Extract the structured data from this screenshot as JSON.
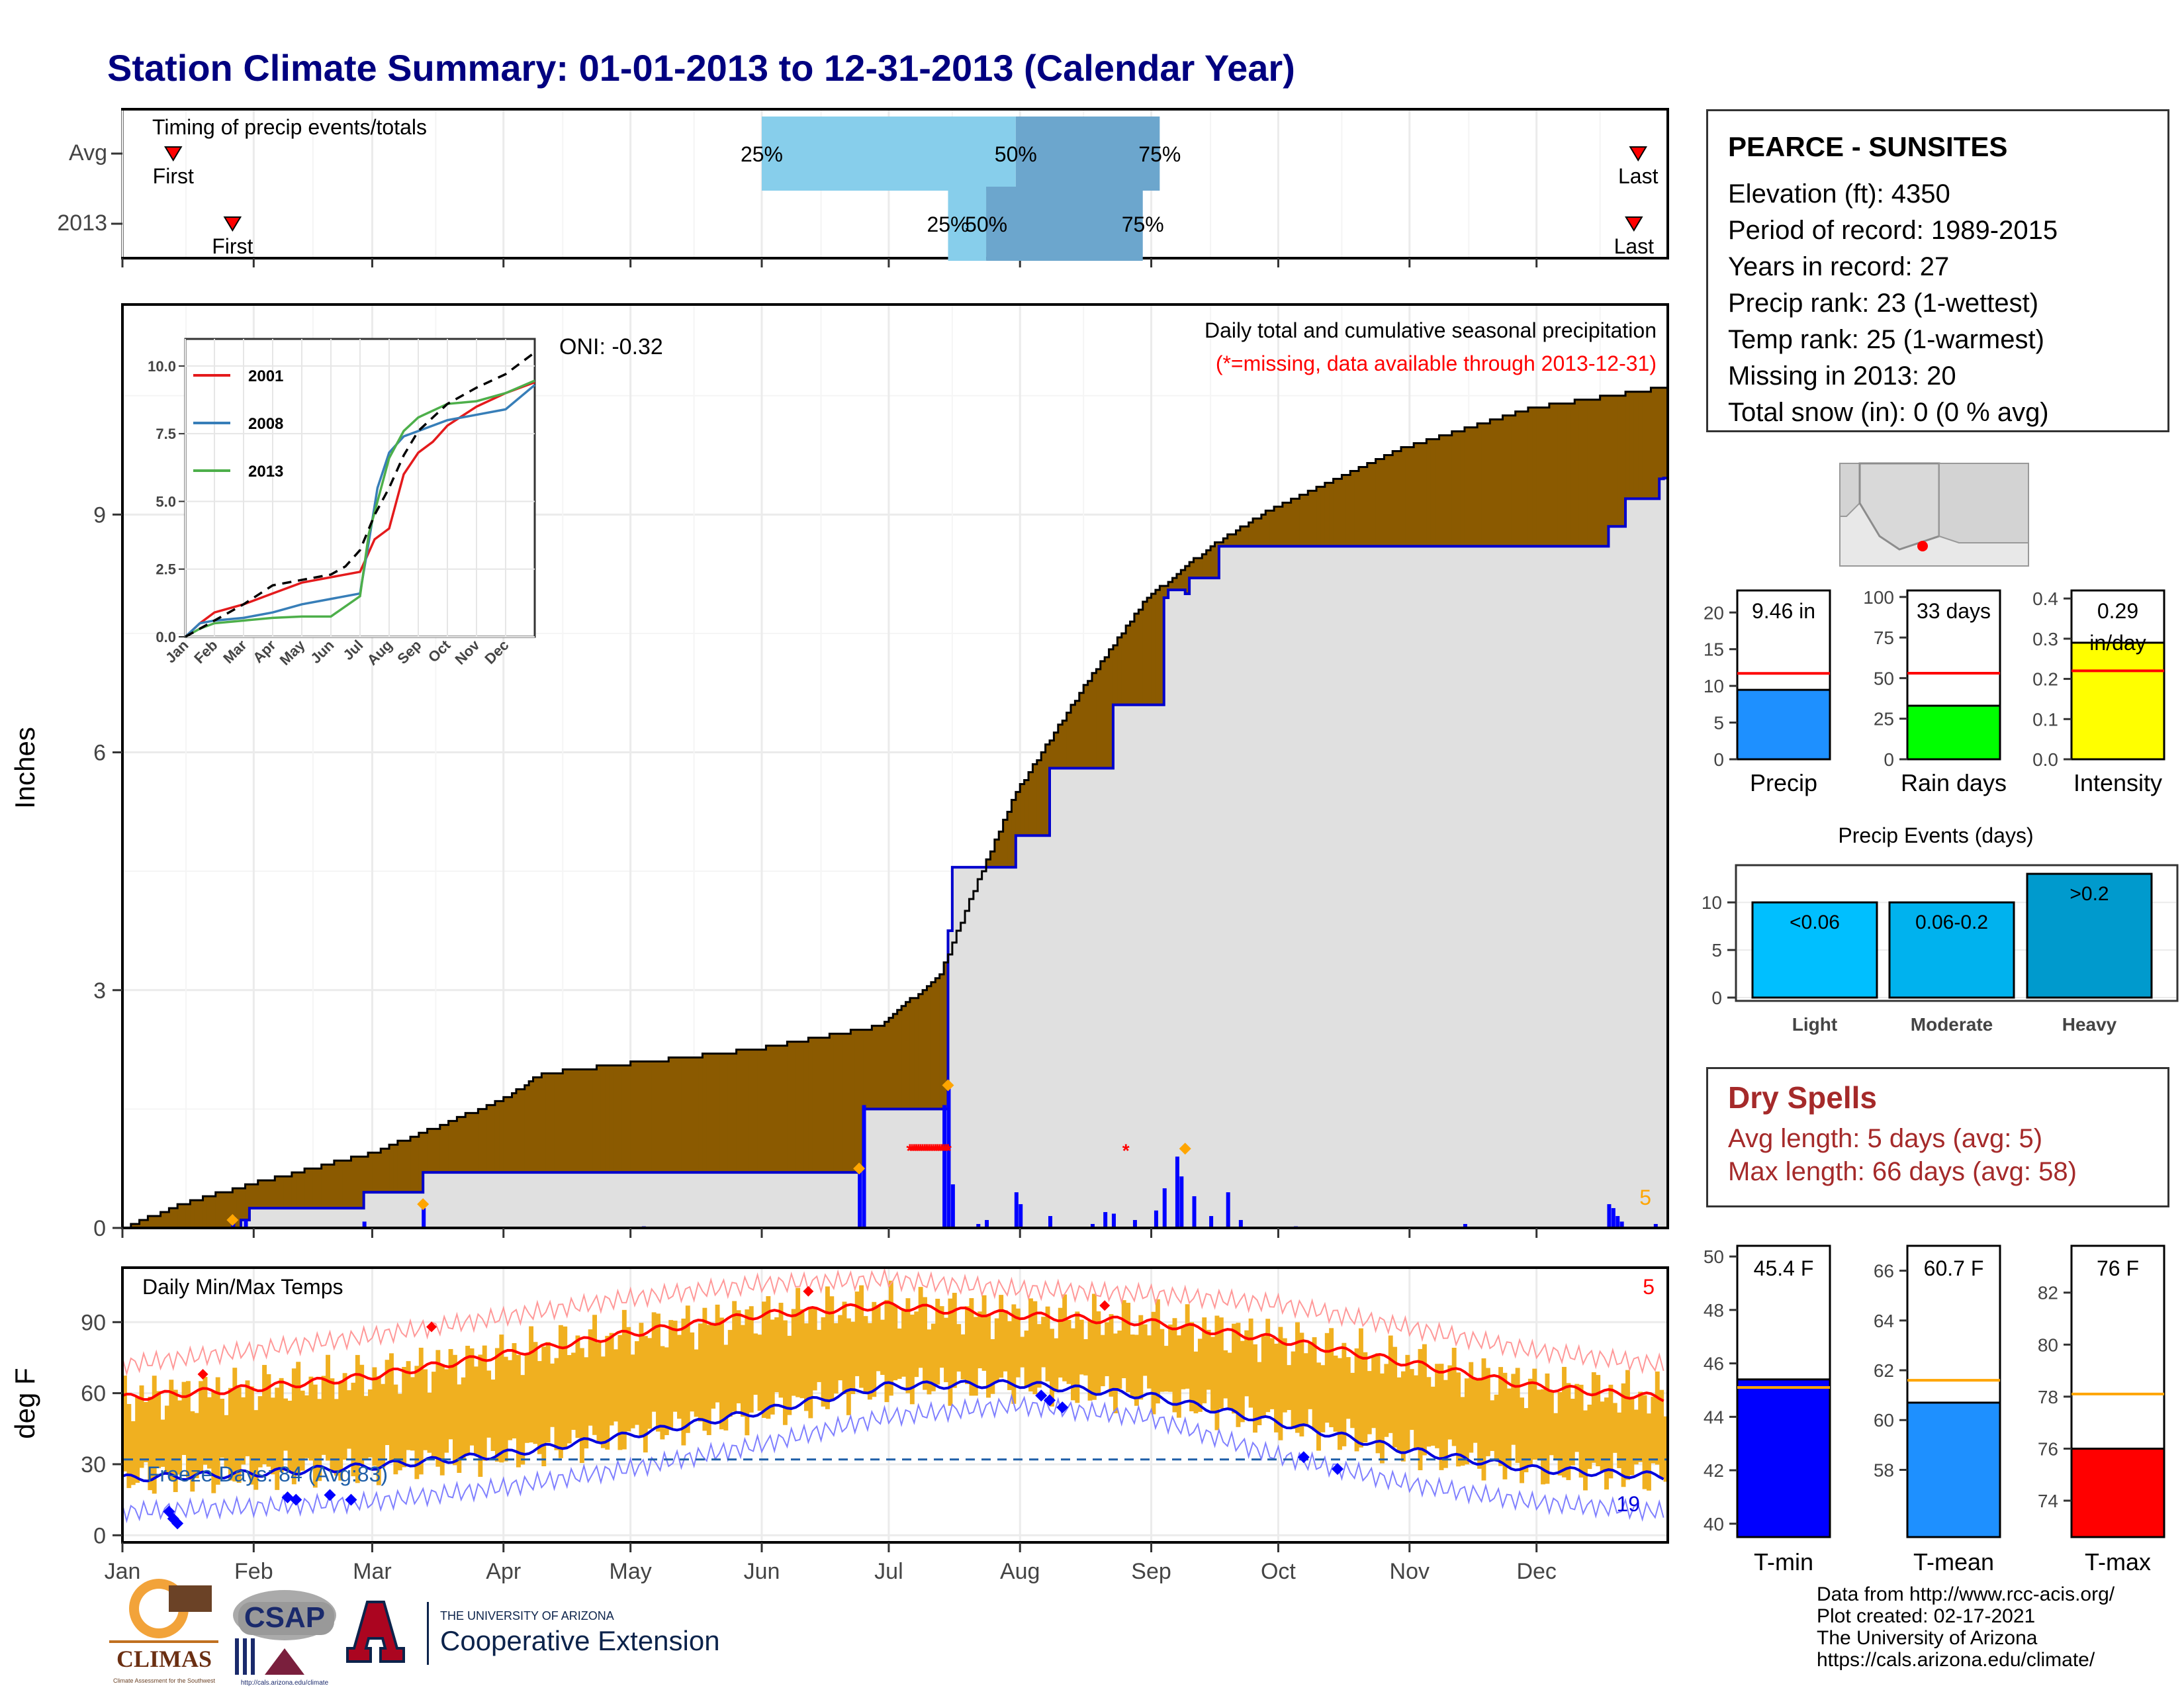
{
  "page": {
    "title": "Station Climate Summary: 01-01-2013 to 12-31-2013 (Calendar Year)"
  },
  "timing": {
    "title": "Timing of precip events/totals",
    "rows": [
      {
        "label": "Avg",
        "first": "Jan 13",
        "p25": "Jun 1",
        "p50": "Jul 31",
        "p75": "Sep 3",
        "last": "Dec 25"
      },
      {
        "label": "2013",
        "first": "Jan 27",
        "p25": "Jul 15",
        "p50": "Jul 24",
        "p75": "Aug 30",
        "last": "Dec 24"
      }
    ],
    "first_label": "First",
    "last_label": "Last",
    "p25_label": "25%",
    "p50_label": "50%",
    "p75_label": "75%",
    "colors": {
      "to_median": "#87ceeb",
      "to_p75": "#6ca6cd",
      "marker": "#ff0000"
    }
  },
  "precip_panel": {
    "ylabel": "Inches",
    "yticks": [
      0,
      3,
      6,
      9
    ],
    "ylim": [
      0,
      11.65
    ],
    "months": [
      "Jan",
      "Feb",
      "Mar",
      "Apr",
      "May",
      "Jun",
      "Jul",
      "Aug",
      "Sep",
      "Oct",
      "Nov",
      "Dec"
    ],
    "header": "Daily total and cumulative seasonal precipitation",
    "missing_note": "(*=missing, data available through 2013-12-31)",
    "oni": "ONI: -0.32",
    "corner_count": "5",
    "colors": {
      "avg_fill": "#8b5a00",
      "above_fill": "#007a00",
      "obs_fill": "#e0e0e0",
      "obs_line": "#0000cd",
      "missing": "#ff0000",
      "extreme": "#ffa500"
    },
    "chart_data": {
      "type": "area",
      "x_unit": "day of year",
      "avg_cumulative": [
        [
          1,
          0
        ],
        [
          15,
          0.3
        ],
        [
          31,
          0.55
        ],
        [
          60,
          0.95
        ],
        [
          90,
          1.6
        ],
        [
          100,
          1.95
        ],
        [
          150,
          2.25
        ],
        [
          180,
          2.55
        ],
        [
          194,
          3.2
        ],
        [
          200,
          4.0
        ],
        [
          212,
          5.5
        ],
        [
          230,
          7.0
        ],
        [
          243,
          7.95
        ],
        [
          258,
          8.6
        ],
        [
          273,
          9.1
        ],
        [
          304,
          9.85
        ],
        [
          334,
          10.35
        ],
        [
          365,
          10.6
        ]
      ],
      "observed_cumulative": [
        [
          1,
          0
        ],
        [
          29,
          0.1
        ],
        [
          31,
          0.25
        ],
        [
          58,
          0.45
        ],
        [
          72,
          0.7
        ],
        [
          175,
          0.75
        ],
        [
          176,
          1.5
        ],
        [
          195,
          1.5
        ],
        [
          196,
          3.75
        ],
        [
          197,
          4.55
        ],
        [
          211,
          4.55
        ],
        [
          212,
          4.95
        ],
        [
          220,
          5.8
        ],
        [
          233,
          5.8
        ],
        [
          235,
          6.6
        ],
        [
          247,
          7.95
        ],
        [
          248,
          8.05
        ],
        [
          252,
          8.0
        ],
        [
          253,
          8.2
        ],
        [
          260,
          8.6
        ],
        [
          350,
          8.6
        ],
        [
          352,
          8.85
        ],
        [
          356,
          9.2
        ],
        [
          364,
          9.45
        ],
        [
          365,
          9.46
        ]
      ],
      "daily_bars": [
        [
          27,
          0.15
        ],
        [
          30,
          0.1
        ],
        [
          58,
          0.08
        ],
        [
          72,
          0.25
        ],
        [
          124,
          0.02
        ],
        [
          175,
          0.75
        ],
        [
          176,
          1.55
        ],
        [
          195,
          1.55
        ],
        [
          196,
          1.8
        ],
        [
          197,
          0.55
        ],
        [
          203,
          0.05
        ],
        [
          205,
          0.1
        ],
        [
          212,
          0.45
        ],
        [
          213,
          0.3
        ],
        [
          220,
          0.15
        ],
        [
          230,
          0.05
        ],
        [
          233,
          0.2
        ],
        [
          235,
          0.18
        ],
        [
          240,
          0.1
        ],
        [
          245,
          0.22
        ],
        [
          247,
          0.5
        ],
        [
          250,
          0.9
        ],
        [
          251,
          0.65
        ],
        [
          254,
          0.4
        ],
        [
          258,
          0.15
        ],
        [
          262,
          0.45
        ],
        [
          265,
          0.1
        ],
        [
          278,
          0.02
        ],
        [
          318,
          0.05
        ],
        [
          352,
          0.3
        ],
        [
          353,
          0.25
        ],
        [
          354,
          0.15
        ],
        [
          355,
          0.08
        ],
        [
          363,
          0.05
        ]
      ],
      "missing_days_range": [
        187,
        196
      ],
      "missing_marker_day": 238,
      "extreme_points": [
        [
          27,
          0.1
        ],
        [
          72,
          0.3
        ],
        [
          175,
          0.75
        ],
        [
          196,
          1.8
        ],
        [
          252,
          1.0
        ]
      ]
    }
  },
  "inset": {
    "yticks": [
      "0.0",
      "2.5",
      "5.0",
      "7.5",
      "10.0"
    ],
    "months": [
      "Jan",
      "Feb",
      "Mar",
      "Apr",
      "May",
      "Jun",
      "Jul",
      "Aug",
      "Sep",
      "Oct",
      "Nov",
      "Dec"
    ],
    "series": [
      {
        "name": "2001",
        "color": "#e41a1c",
        "values": [
          [
            0,
            0
          ],
          [
            0.5,
            0.5
          ],
          [
            1,
            0.9
          ],
          [
            2,
            1.2
          ],
          [
            3,
            1.6
          ],
          [
            4,
            2.0
          ],
          [
            5,
            2.2
          ],
          [
            6,
            2.4
          ],
          [
            6.5,
            3.6
          ],
          [
            7,
            4.0
          ],
          [
            7.5,
            6.0
          ],
          [
            8,
            6.8
          ],
          [
            8.5,
            7.2
          ],
          [
            9,
            7.8
          ],
          [
            10,
            8.5
          ],
          [
            11,
            9.0
          ],
          [
            12,
            9.4
          ]
        ]
      },
      {
        "name": "2008",
        "color": "#377eb8",
        "values": [
          [
            0,
            0
          ],
          [
            0.5,
            0.5
          ],
          [
            1,
            0.6
          ],
          [
            2,
            0.7
          ],
          [
            3,
            0.9
          ],
          [
            4,
            1.2
          ],
          [
            5,
            1.4
          ],
          [
            6,
            1.6
          ],
          [
            6.3,
            3.5
          ],
          [
            6.6,
            5.5
          ],
          [
            7,
            6.8
          ],
          [
            7.5,
            7.4
          ],
          [
            8,
            7.6
          ],
          [
            9,
            8.0
          ],
          [
            10,
            8.2
          ],
          [
            11,
            8.4
          ],
          [
            12,
            9.3
          ]
        ]
      },
      {
        "name": "2013",
        "color": "#4daf4a",
        "values": [
          [
            0,
            0
          ],
          [
            0.5,
            0.3
          ],
          [
            1,
            0.5
          ],
          [
            2,
            0.6
          ],
          [
            3,
            0.7
          ],
          [
            4,
            0.75
          ],
          [
            5,
            0.75
          ],
          [
            6,
            1.5
          ],
          [
            6.3,
            3.8
          ],
          [
            6.6,
            5.0
          ],
          [
            7,
            6.6
          ],
          [
            7.5,
            7.6
          ],
          [
            8,
            8.1
          ],
          [
            9,
            8.6
          ],
          [
            10,
            8.7
          ],
          [
            11,
            9.0
          ],
          [
            12,
            9.46
          ]
        ]
      },
      {
        "name": "",
        "color": "#000000",
        "values": [
          [
            0,
            0
          ],
          [
            1,
            0.6
          ],
          [
            2,
            1.2
          ],
          [
            3,
            1.9
          ],
          [
            4,
            2.1
          ],
          [
            5,
            2.3
          ],
          [
            5.5,
            2.6
          ],
          [
            6,
            3.2
          ],
          [
            6.5,
            4.5
          ],
          [
            7,
            5.5
          ],
          [
            7.5,
            6.7
          ],
          [
            8,
            7.6
          ],
          [
            9,
            8.6
          ],
          [
            10,
            9.2
          ],
          [
            11,
            9.7
          ],
          [
            12,
            10.5
          ]
        ]
      }
    ]
  },
  "temp_panel": {
    "ylabel": "deg F",
    "title": "Daily Min/Max Temps",
    "freeze_text": "Freeze Days: 84 (Avg:83)",
    "yticks": [
      0,
      30,
      60,
      90
    ],
    "ylim": [
      -3,
      113
    ],
    "freeze_line": 32,
    "top_count": "5",
    "bottom_count": "19",
    "months": [
      "Jan",
      "Feb",
      "Mar",
      "Apr",
      "May",
      "Jun",
      "Jul",
      "Aug",
      "Sep",
      "Oct",
      "Nov",
      "Dec"
    ],
    "colors": {
      "bars": "#f0b020",
      "max_avg": "#ff0000",
      "min_avg": "#0000dd",
      "max_rec": "#ff9999",
      "min_rec": "#8080ff",
      "freeze": "#1f5fa8"
    },
    "chart_data": {
      "type": "line",
      "x_unit": "day of year",
      "tmax_avg": [
        [
          1,
          58
        ],
        [
          31,
          62
        ],
        [
          59,
          67
        ],
        [
          90,
          76
        ],
        [
          120,
          85
        ],
        [
          151,
          93
        ],
        [
          181,
          97
        ],
        [
          212,
          93
        ],
        [
          243,
          90
        ],
        [
          273,
          83
        ],
        [
          304,
          73
        ],
        [
          334,
          63
        ],
        [
          365,
          58
        ]
      ],
      "tmin_avg": [
        [
          1,
          24
        ],
        [
          31,
          26
        ],
        [
          59,
          29
        ],
        [
          90,
          34
        ],
        [
          120,
          42
        ],
        [
          151,
          52
        ],
        [
          181,
          63
        ],
        [
          212,
          64
        ],
        [
          243,
          59
        ],
        [
          273,
          48
        ],
        [
          304,
          36
        ],
        [
          334,
          28
        ],
        [
          365,
          25
        ]
      ],
      "tmax_record": [
        [
          1,
          72
        ],
        [
          31,
          78
        ],
        [
          59,
          84
        ],
        [
          90,
          92
        ],
        [
          120,
          100
        ],
        [
          151,
          106
        ],
        [
          181,
          108
        ],
        [
          212,
          104
        ],
        [
          243,
          102
        ],
        [
          273,
          98
        ],
        [
          304,
          88
        ],
        [
          334,
          78
        ],
        [
          365,
          72
        ]
      ],
      "tmin_record": [
        [
          1,
          10
        ],
        [
          31,
          12
        ],
        [
          59,
          14
        ],
        [
          90,
          20
        ],
        [
          120,
          28
        ],
        [
          151,
          38
        ],
        [
          181,
          50
        ],
        [
          212,
          55
        ],
        [
          243,
          50
        ],
        [
          273,
          34
        ],
        [
          304,
          22
        ],
        [
          334,
          14
        ],
        [
          365,
          10
        ]
      ],
      "max_markers": [
        [
          20,
          68
        ],
        [
          74,
          88
        ],
        [
          163,
          103
        ],
        [
          233,
          97
        ]
      ],
      "min_markers": [
        [
          12,
          10
        ],
        [
          13,
          7
        ],
        [
          14,
          5
        ],
        [
          40,
          16
        ],
        [
          42,
          15
        ],
        [
          50,
          17
        ],
        [
          55,
          15
        ],
        [
          218,
          59
        ],
        [
          220,
          57
        ],
        [
          223,
          54
        ],
        [
          280,
          33
        ],
        [
          288,
          28
        ]
      ]
    }
  },
  "map": {
    "marker_color": "#ff0000"
  },
  "station": {
    "name": "PEARCE - SUNSITES",
    "lines": [
      "Elevation (ft): 4350",
      "Period of record: 1989-2015",
      "Years in record: 27",
      "Precip rank: 23 (1-wettest)",
      "Temp rank: 25 (1-warmest)",
      "Missing in 2013: 20",
      "Total snow (in): 0 (0 % avg)"
    ]
  },
  "mini_precip": [
    {
      "label": "Precip",
      "value_text": "9.46 in",
      "value": 9.46,
      "avg": 11.7,
      "ymax": 23,
      "ticks": [
        0,
        5,
        10,
        15,
        20
      ],
      "color": "#1e90ff"
    },
    {
      "label": "Rain days",
      "value_text": "33 days",
      "value": 33,
      "avg": 53,
      "ymax": 104,
      "ticks": [
        0,
        25,
        50,
        75,
        100
      ],
      "color": "#00ff00"
    },
    {
      "label": "Intensity",
      "value_text": "0.29\nin/day",
      "value": 0.29,
      "avg": 0.22,
      "ymax": 0.42,
      "ticks": [
        "0.0",
        "0.1",
        "0.2",
        "0.3",
        "0.4"
      ],
      "color": "#ffff00"
    }
  ],
  "events": {
    "title": "Precip Events (days)",
    "ticks": [
      0,
      5,
      10
    ],
    "ymax": 13.7,
    "categories": [
      "Light",
      "Moderate",
      "Heavy"
    ],
    "labels": [
      "<0.06",
      "0.06-0.2",
      ">0.2"
    ],
    "values": [
      10,
      10,
      13
    ],
    "colors": [
      "#00bfff",
      "#00b2ee",
      "#009acd"
    ]
  },
  "dry": {
    "title": "Dry Spells",
    "avg_line": "Avg length: 5 days (avg: 5)",
    "max_line": "Max length: 66 days (avg: 58)"
  },
  "mini_temp": [
    {
      "label": "T-min",
      "value_text": "45.4 F",
      "value": 45.4,
      "avg": 45.1,
      "ymin": 39.5,
      "ymax": 50.4,
      "ticks": [
        40,
        42,
        44,
        46,
        48,
        50
      ],
      "color": "#0000ff"
    },
    {
      "label": "T-mean",
      "value_text": "60.7 F",
      "value": 60.7,
      "avg": 61.6,
      "ymin": 55.3,
      "ymax": 67.0,
      "ticks": [
        58,
        60,
        62,
        64,
        66
      ],
      "color": "#1e90ff"
    },
    {
      "label": "T-max",
      "value_text": "76 F",
      "value": 76.0,
      "avg": 78.1,
      "ymin": 72.6,
      "ymax": 83.8,
      "ticks": [
        74,
        76,
        78,
        80,
        82
      ],
      "color": "#ff0000"
    }
  ],
  "credits": {
    "lines": [
      "Data from http://www.rcc-acis.org/",
      "Plot created: 02-17-2021",
      "The University of Arizona",
      "https://cals.arizona.edu/climate/"
    ]
  },
  "logos": {
    "climas": "CLIMAS",
    "climas_sub": "Climate Assessment for the Southwest",
    "csap": "CSAP",
    "csap_url": "http://cals.arizona.edu/climate",
    "ua_small": "THE UNIVERSITY OF ARIZONA",
    "ua_big": "Cooperative Extension"
  }
}
